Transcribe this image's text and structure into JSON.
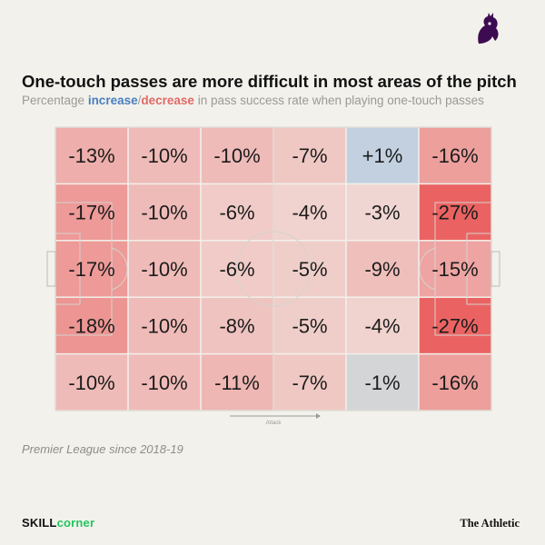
{
  "title": "One-touch passes are more difficult in most areas of the pitch",
  "subtitle": {
    "prefix": "Percentage ",
    "increase": "increase",
    "sep": "/",
    "decrease": "decrease",
    "suffix": " in pass success rate when playing one-touch passes"
  },
  "source": "Premier League since 2018-19",
  "credits": {
    "skillcorner_a": "SKILL",
    "skillcorner_b": "corner",
    "publisher": "The Athletic"
  },
  "colors": {
    "increase": "#4a7fc0",
    "decrease": "#e06a66",
    "neutral": "#cfcfcf",
    "skillcorner": "#22c55e",
    "background": "#f2f1ec"
  },
  "chart_data": {
    "type": "heatmap",
    "title": "One-touch passes are more difficult in most areas of the pitch",
    "subtitle": "Percentage increase/decrease in pass success rate when playing one-touch passes",
    "direction_label": "Attack",
    "unit": "%",
    "rows": 5,
    "cols": 6,
    "values": [
      [
        -13,
        -10,
        -10,
        -7,
        1,
        -16
      ],
      [
        -17,
        -10,
        -6,
        -4,
        -3,
        -27
      ],
      [
        -17,
        -10,
        -6,
        -5,
        -9,
        -15
      ],
      [
        -18,
        -10,
        -8,
        -5,
        -4,
        -27
      ],
      [
        -10,
        -10,
        -11,
        -7,
        -1,
        -16
      ]
    ],
    "labels": [
      [
        "-13%",
        "-10%",
        "-10%",
        "-7%",
        "+1%",
        "-16%"
      ],
      [
        "-17%",
        "-10%",
        "-6%",
        "-4%",
        "-3%",
        "-27%"
      ],
      [
        "-17%",
        "-10%",
        "-6%",
        "-5%",
        "-9%",
        "-15%"
      ],
      [
        "-18%",
        "-10%",
        "-8%",
        "-5%",
        "-4%",
        "-27%"
      ],
      [
        "-10%",
        "-10%",
        "-11%",
        "-7%",
        "-1%",
        "-16%"
      ]
    ]
  }
}
